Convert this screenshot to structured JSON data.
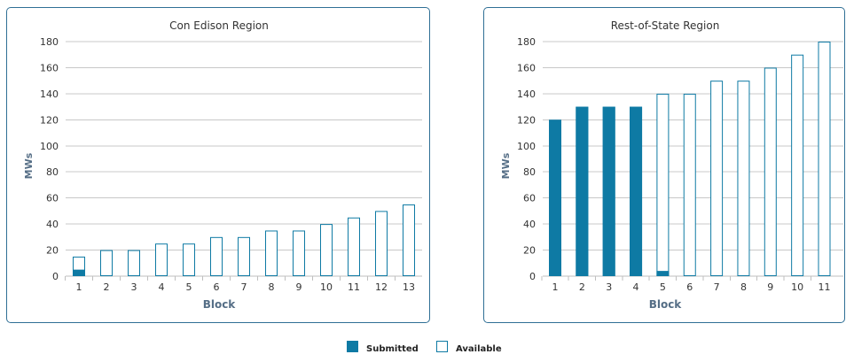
{
  "colors": {
    "submitted": "#0e7aa4",
    "available_fill": "#ffffff",
    "available_stroke": "#0e7aa4",
    "grid": "#c8c8c8",
    "axis_title": "#556e86",
    "tick_label": "#333333",
    "panel_border": "#2f6f95"
  },
  "legend": {
    "submitted_label": "Submitted",
    "available_label": "Available"
  },
  "chart_data": [
    {
      "type": "bar",
      "title": "Con Edison Region",
      "xlabel": "Block",
      "ylabel": "MWs",
      "ylim": [
        0,
        180
      ],
      "yticks": [
        0,
        20,
        40,
        60,
        80,
        100,
        120,
        140,
        160,
        180
      ],
      "grid": true,
      "categories": [
        "1",
        "2",
        "3",
        "4",
        "5",
        "6",
        "7",
        "8",
        "9",
        "10",
        "11",
        "12",
        "13"
      ],
      "series": [
        {
          "name": "Submitted",
          "values": [
            5,
            0,
            0,
            0,
            0,
            0,
            0,
            0,
            0,
            0,
            0,
            0,
            0
          ]
        },
        {
          "name": "Available",
          "values": [
            15,
            20,
            20,
            25,
            25,
            30,
            30,
            35,
            35,
            40,
            45,
            50,
            55
          ]
        }
      ]
    },
    {
      "type": "bar",
      "title": "Rest-of-State Region",
      "xlabel": "Block",
      "ylabel": "MWs",
      "ylim": [
        0,
        180
      ],
      "yticks": [
        0,
        20,
        40,
        60,
        80,
        100,
        120,
        140,
        160,
        180
      ],
      "grid": true,
      "categories": [
        "1",
        "2",
        "3",
        "4",
        "5",
        "6",
        "7",
        "8",
        "9",
        "10",
        "11"
      ],
      "series": [
        {
          "name": "Submitted",
          "values": [
            120,
            130,
            130,
            130,
            4,
            0,
            0,
            0,
            0,
            0,
            0
          ]
        },
        {
          "name": "Available",
          "values": [
            120,
            130,
            130,
            130,
            140,
            140,
            150,
            150,
            160,
            170,
            180
          ]
        }
      ]
    }
  ]
}
